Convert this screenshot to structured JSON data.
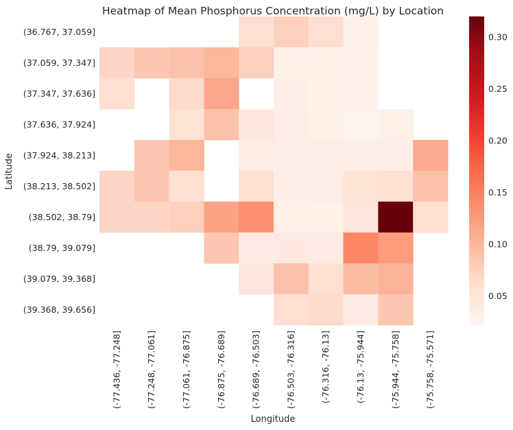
{
  "chart_data": {
    "type": "heatmap",
    "title": "Heatmap of Mean Phosphorus Concentration (mg/L) by Location",
    "xlabel": "Longitude",
    "ylabel": "Latitude",
    "x_categories": [
      "(-77.436, -77.248]",
      "(-77.248, -77.061]",
      "(-77.061, -76.875]",
      "(-76.875, -76.689]",
      "(-76.689, -76.503]",
      "(-76.503, -76.316]",
      "(-76.316, -76.13]",
      "(-76.13, -75.944]",
      "(-75.944, -75.758]",
      "(-75.758, -75.571]"
    ],
    "y_categories": [
      "(36.767, 37.059]",
      "(37.059, 37.347]",
      "(37.347, 37.636]",
      "(37.636, 37.924]",
      "(37.924, 38.213]",
      "(38.213, 38.502]",
      "(38.502, 38.79]",
      "(38.79, 39.079]",
      "(39.079, 39.368]",
      "(39.368, 39.656]"
    ],
    "values": [
      [
        null,
        null,
        null,
        null,
        0.06,
        0.075,
        0.06,
        0.03,
        null,
        null
      ],
      [
        0.07,
        0.085,
        0.09,
        0.1,
        0.075,
        0.03,
        0.028,
        0.027,
        null,
        null
      ],
      [
        0.06,
        null,
        0.065,
        0.115,
        null,
        0.032,
        0.028,
        0.027,
        null,
        null
      ],
      [
        null,
        null,
        0.055,
        0.09,
        0.045,
        0.035,
        0.028,
        0.025,
        0.03,
        null
      ],
      [
        null,
        0.085,
        0.1,
        null,
        0.038,
        0.035,
        0.035,
        0.034,
        0.032,
        0.11
      ],
      [
        0.07,
        0.085,
        0.06,
        null,
        0.06,
        0.035,
        0.035,
        0.055,
        0.06,
        0.09
      ],
      [
        0.07,
        0.07,
        0.075,
        0.12,
        0.135,
        0.03,
        0.028,
        0.05,
        0.32,
        0.06
      ],
      [
        null,
        null,
        null,
        0.085,
        0.04,
        0.042,
        0.04,
        0.145,
        0.125,
        null
      ],
      [
        null,
        null,
        null,
        null,
        0.05,
        0.09,
        0.06,
        0.095,
        0.105,
        null
      ],
      [
        null,
        null,
        null,
        null,
        null,
        0.06,
        0.065,
        0.04,
        0.085,
        null
      ]
    ],
    "colorbar": {
      "min": 0.022,
      "max": 0.32,
      "ticks": [
        0.05,
        0.1,
        0.15,
        0.2,
        0.25,
        0.3
      ],
      "tick_labels": [
        "0.05",
        "0.10",
        "0.15",
        "0.20",
        "0.25",
        "0.30"
      ],
      "colormap": "Reds"
    },
    "grid": false
  }
}
